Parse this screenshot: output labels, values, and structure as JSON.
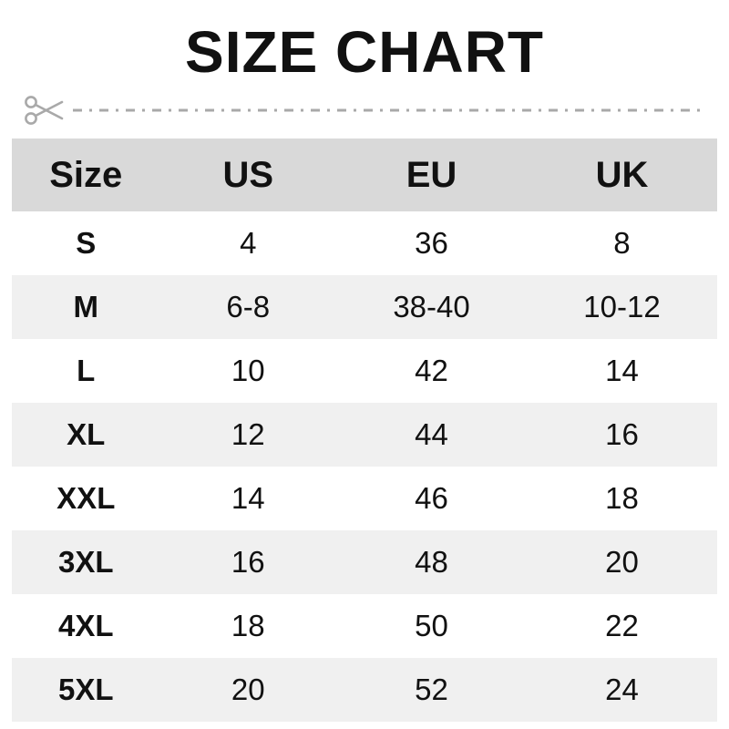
{
  "title": "SIZE CHART",
  "colors": {
    "header_bg": "#d9d9d9",
    "stripe_bg": "#f0f0f0",
    "text": "#111111",
    "cutline": "#a9a9a9"
  },
  "icons": {
    "scissors": "✂",
    "cut_line": "dash-dot-line"
  },
  "table": {
    "columns": [
      "Size",
      "US",
      "EU",
      "UK"
    ],
    "rows": [
      {
        "size": "S",
        "us": "4",
        "eu": "36",
        "uk": "8"
      },
      {
        "size": "M",
        "us": "6-8",
        "eu": "38-40",
        "uk": "10-12"
      },
      {
        "size": "L",
        "us": "10",
        "eu": "42",
        "uk": "14"
      },
      {
        "size": "XL",
        "us": "12",
        "eu": "44",
        "uk": "16"
      },
      {
        "size": "XXL",
        "us": "14",
        "eu": "46",
        "uk": "18"
      },
      {
        "size": "3XL",
        "us": "16",
        "eu": "48",
        "uk": "20"
      },
      {
        "size": "4XL",
        "us": "18",
        "eu": "50",
        "uk": "22"
      },
      {
        "size": "5XL",
        "us": "20",
        "eu": "52",
        "uk": "24"
      }
    ]
  },
  "chart_data": {
    "type": "table",
    "title": "SIZE CHART",
    "columns": [
      "Size",
      "US",
      "EU",
      "UK"
    ],
    "rows": [
      [
        "S",
        "4",
        "36",
        "8"
      ],
      [
        "M",
        "6-8",
        "38-40",
        "10-12"
      ],
      [
        "L",
        "10",
        "42",
        "14"
      ],
      [
        "XL",
        "12",
        "44",
        "16"
      ],
      [
        "XXL",
        "14",
        "46",
        "18"
      ],
      [
        "3XL",
        "16",
        "48",
        "20"
      ],
      [
        "4XL",
        "18",
        "50",
        "22"
      ],
      [
        "5XL",
        "20",
        "52",
        "24"
      ]
    ],
    "layout_hints": {
      "header_background": "#d9d9d9",
      "zebra_striping": "even rows #f0f0f0, odd rows white",
      "alignment": "center"
    }
  }
}
